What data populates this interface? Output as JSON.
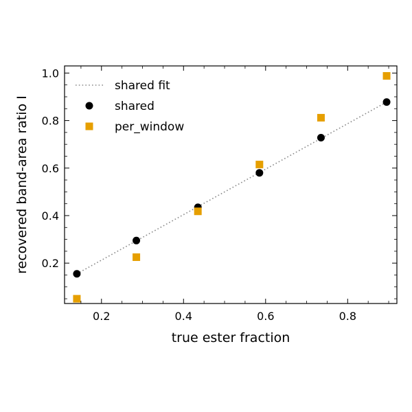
{
  "chart_data": {
    "type": "scatter",
    "title": "",
    "xlabel": "true ester fraction",
    "ylabel": "recovered band-area ratio  I",
    "xlim": [
      0.11,
      0.92
    ],
    "ylim": [
      0.03,
      1.03
    ],
    "xticks": [
      0.2,
      0.4,
      0.6,
      0.8
    ],
    "yticks": [
      0.2,
      0.4,
      0.6,
      0.8,
      1.0
    ],
    "xtick_labels": [
      "0.2",
      "0.4",
      "0.6",
      "0.8"
    ],
    "ytick_labels": [
      "0.2",
      "0.4",
      "0.6",
      "0.8",
      "1.0"
    ],
    "ticks_direction": "in",
    "minor_ticks": true,
    "grid": false,
    "legend_position": "top-left",
    "series": [
      {
        "name": "shared",
        "marker": "circle",
        "color": "#000000",
        "x": [
          0.14,
          0.285,
          0.435,
          0.585,
          0.735,
          0.895
        ],
        "y": [
          0.155,
          0.295,
          0.435,
          0.58,
          0.728,
          0.878
        ]
      },
      {
        "name": "per_window",
        "marker": "square",
        "color": "#e69f00",
        "x": [
          0.14,
          0.285,
          0.435,
          0.585,
          0.735,
          0.895
        ],
        "y": [
          0.05,
          0.225,
          0.418,
          0.615,
          0.812,
          0.988
        ]
      }
    ],
    "fit_line": {
      "name": "shared fit",
      "style": "dotted",
      "color": "#888888",
      "x": [
        0.14,
        0.895
      ],
      "y": [
        0.155,
        0.878
      ]
    }
  }
}
